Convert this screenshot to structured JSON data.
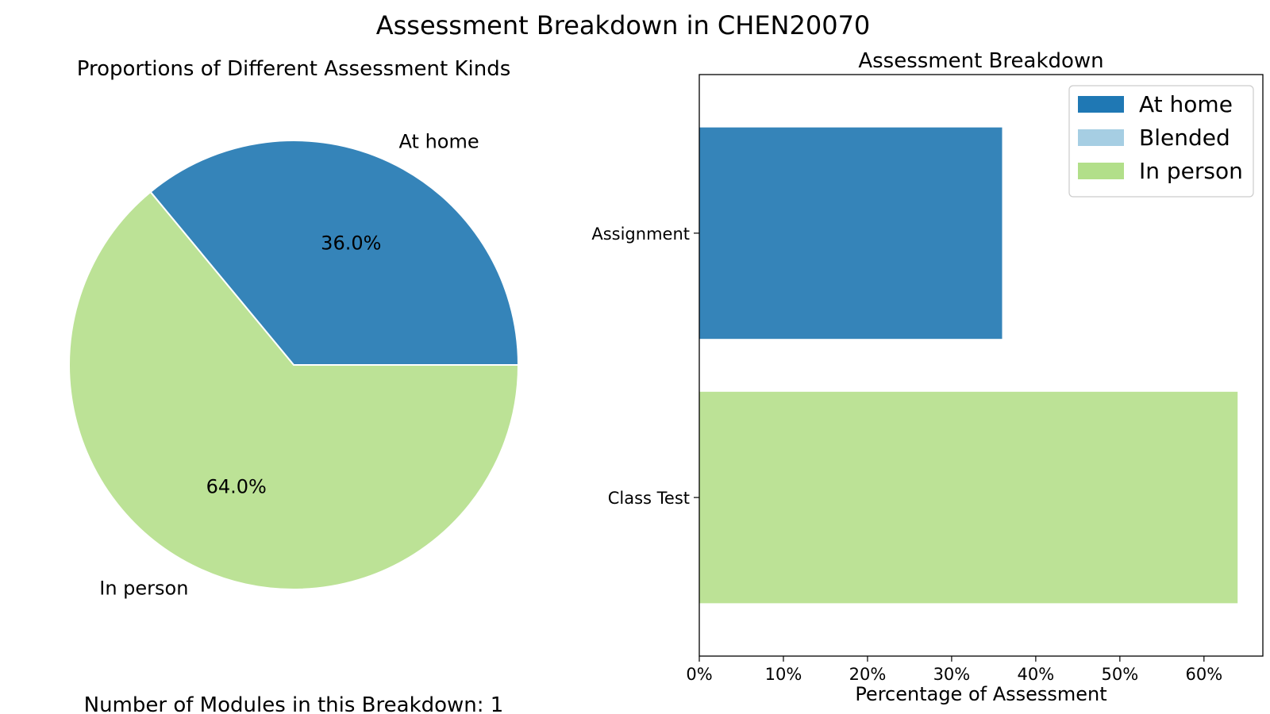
{
  "figure": {
    "suptitle": "Assessment Breakdown in CHEN20070",
    "footnote": "Number of Modules in this Breakdown: 1"
  },
  "colors": {
    "at_home": "#3584b9",
    "blended": "#a6cee3",
    "in_person": "#bce296",
    "legend_at_home": "#1f78b4",
    "legend_in_person": "#b2df8a"
  },
  "chart_data": [
    {
      "type": "pie",
      "title": "Proportions of Different Assessment Kinds",
      "slices": [
        {
          "label": "At home",
          "value": 36.0,
          "pct_label": "36.0%",
          "color_key": "at_home"
        },
        {
          "label": "In person",
          "value": 64.0,
          "pct_label": "64.0%",
          "color_key": "in_person"
        }
      ]
    },
    {
      "type": "bar",
      "orientation": "horizontal",
      "title": "Assessment Breakdown",
      "xlabel": "Percentage of Assessment",
      "ylabel": "",
      "xlim": [
        0,
        67
      ],
      "xticks": [
        {
          "value": 0,
          "label": "0%"
        },
        {
          "value": 10,
          "label": "10%"
        },
        {
          "value": 20,
          "label": "20%"
        },
        {
          "value": 30,
          "label": "30%"
        },
        {
          "value": 40,
          "label": "40%"
        },
        {
          "value": 50,
          "label": "50%"
        },
        {
          "value": 60,
          "label": "60%"
        }
      ],
      "categories": [
        "Assignment",
        "Class Test"
      ],
      "series": [
        {
          "name": "At home",
          "color_key": "at_home",
          "legend_color_key": "legend_at_home",
          "values": [
            36,
            0
          ]
        },
        {
          "name": "Blended",
          "color_key": "blended",
          "legend_color_key": "blended",
          "values": [
            0,
            0
          ]
        },
        {
          "name": "In person",
          "color_key": "in_person",
          "legend_color_key": "legend_in_person",
          "values": [
            0,
            64
          ]
        }
      ],
      "legend": "upper-right",
      "grid": false
    }
  ]
}
